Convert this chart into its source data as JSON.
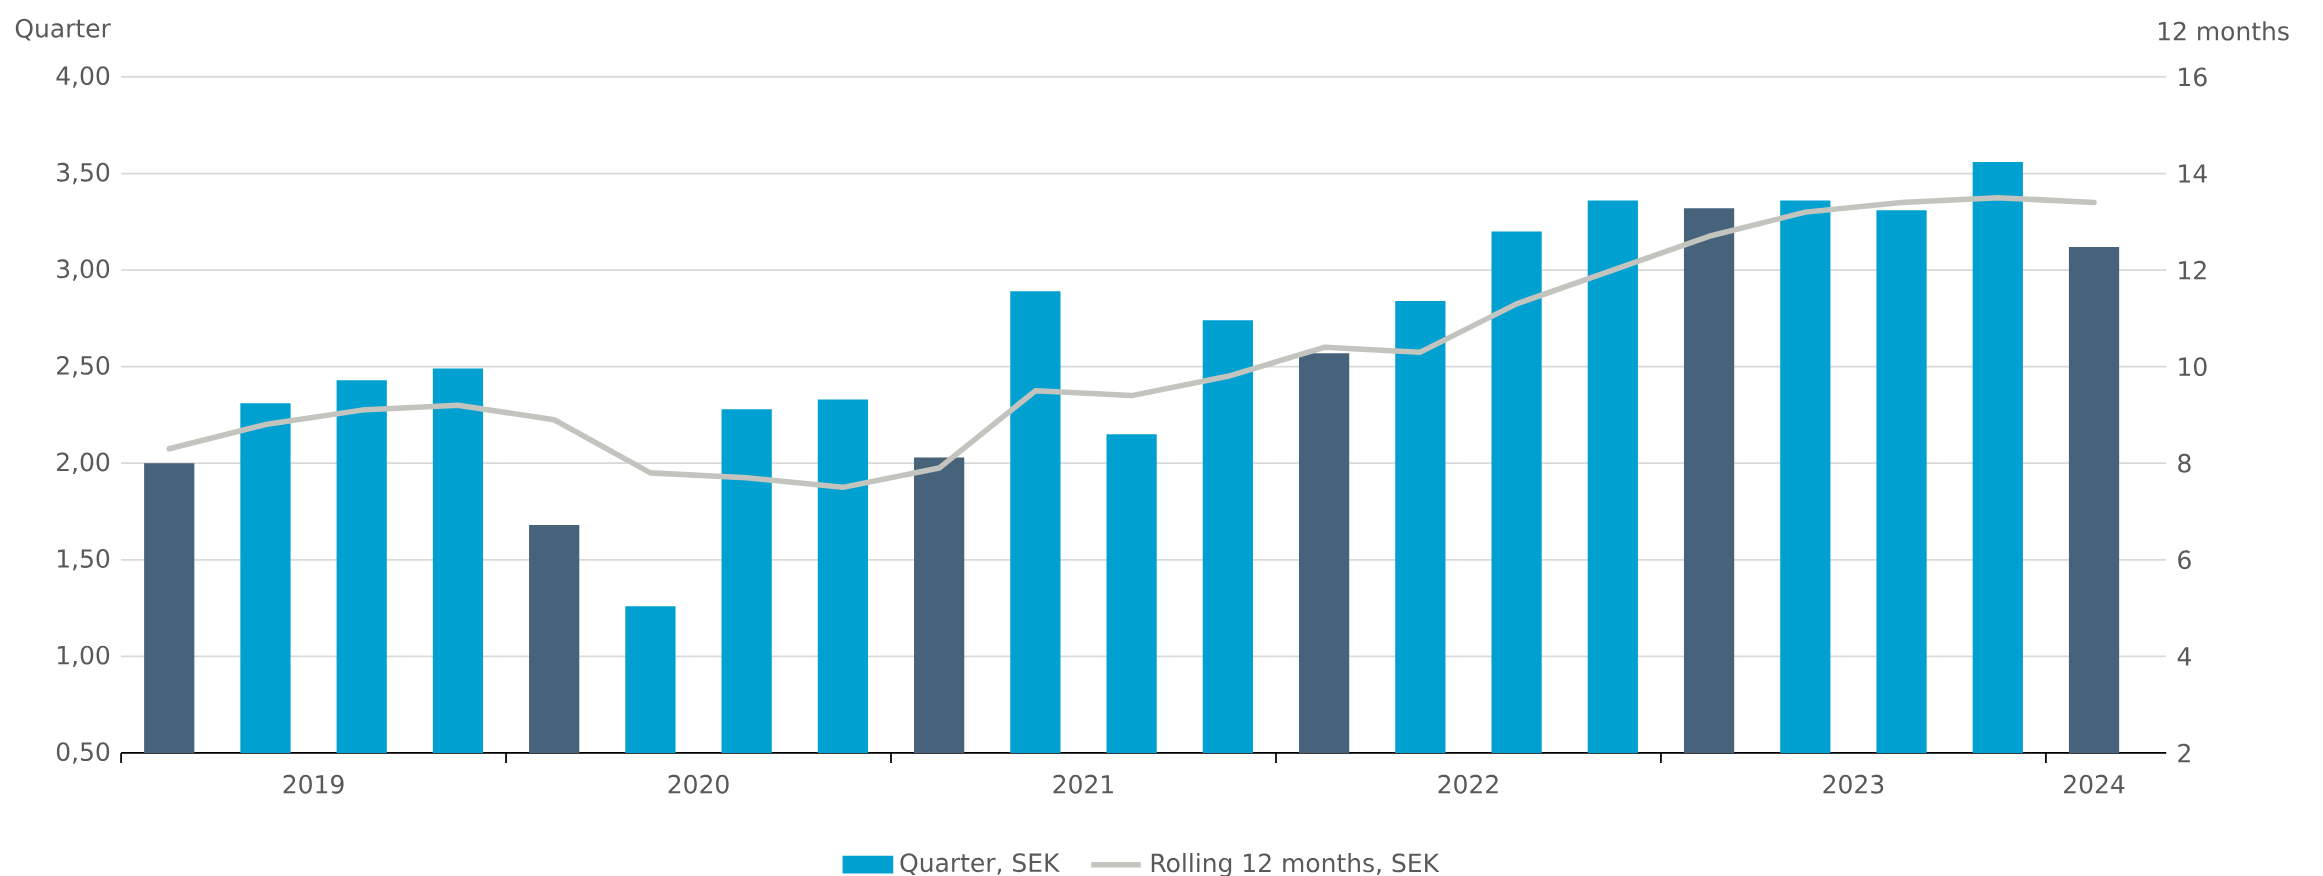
{
  "chart_data": {
    "type": "bar",
    "ylabel": "Quarter",
    "y2label": "12 months",
    "categories": [
      null,
      null,
      null,
      null,
      null,
      null,
      null,
      null,
      null,
      null,
      null,
      null,
      null,
      null,
      null,
      null,
      null,
      null,
      null,
      null,
      null
    ],
    "series": [
      {
        "name": "Quarter, SEK",
        "color": "#00a0d0",
        "colors": [
          "#46637b",
          "#00a0d0",
          "#00a0d0",
          "#00a0d0",
          "#46637b",
          "#00a0d0",
          "#00a0d0",
          "#00a0d0",
          "#46637b",
          "#00a0d0",
          "#00a0d0",
          "#00a0d0",
          "#46637b",
          "#00a0d0",
          "#00a0d0",
          "#00a0d0",
          "#46637b",
          "#00a0d0",
          "#00a0d0",
          "#00a0d0",
          "#46637b"
        ],
        "values": [
          2.0,
          2.31,
          2.43,
          2.49,
          1.68,
          1.26,
          2.28,
          2.33,
          2.03,
          2.89,
          2.15,
          2.74,
          2.57,
          2.84,
          3.2,
          3.36,
          3.32,
          3.36,
          3.31,
          3.56,
          3.12
        ]
      },
      {
        "name": "Rolling 12 months, SEK",
        "type": "line",
        "axis": "y2",
        "color": "#c4c4be",
        "values": [
          8.3,
          8.8,
          9.1,
          9.2,
          8.9,
          7.8,
          7.7,
          7.5,
          7.9,
          9.5,
          9.4,
          9.8,
          10.4,
          10.3,
          11.3,
          12.0,
          12.7,
          13.2,
          13.4,
          13.5,
          13.4
        ]
      }
    ],
    "ylim": [
      0.5,
      4.0
    ],
    "yticks": [
      {
        "value": 0.5,
        "label": "0,50"
      },
      {
        "value": 1.0,
        "label": "1,00"
      },
      {
        "value": 1.5,
        "label": "1,50"
      },
      {
        "value": 2.0,
        "label": "2,00"
      },
      {
        "value": 2.5,
        "label": "2,50"
      },
      {
        "value": 3.0,
        "label": "3,00"
      },
      {
        "value": 3.5,
        "label": "3,50"
      },
      {
        "value": 4.0,
        "label": "4,00"
      }
    ],
    "y2lim": [
      2,
      16
    ],
    "y2ticks": [
      2,
      4,
      6,
      8,
      10,
      12,
      14,
      16
    ],
    "grid": "y",
    "legend": "bottom",
    "annotations": [
      "2019",
      "2020",
      "2021",
      "2022",
      "2023",
      "2024"
    ]
  }
}
